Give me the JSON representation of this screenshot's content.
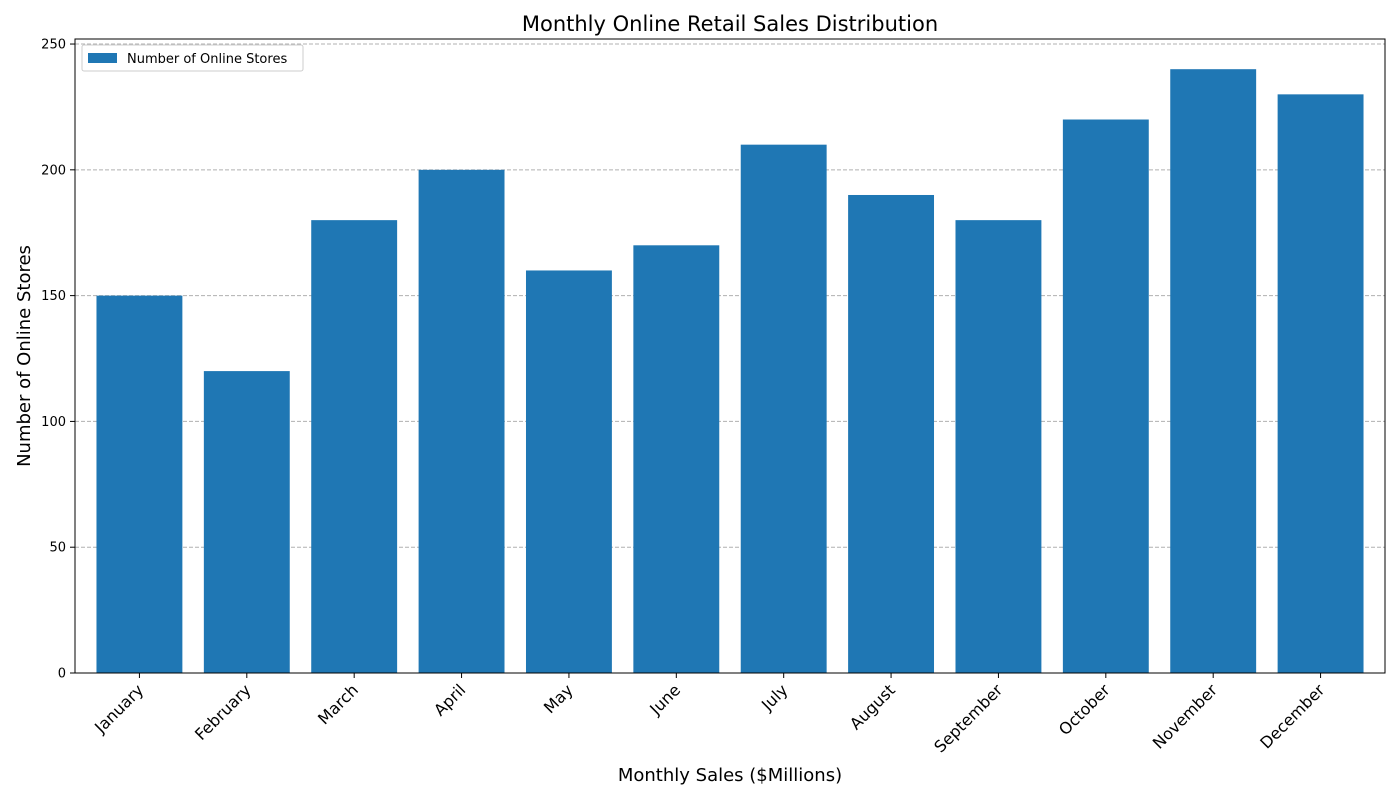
{
  "chart_data": {
    "type": "bar",
    "title": "Monthly Online Retail Sales Distribution",
    "xlabel": "Monthly Sales ($Millions)",
    "ylabel": "Number of Online Stores",
    "categories": [
      "January",
      "February",
      "March",
      "April",
      "May",
      "June",
      "July",
      "August",
      "September",
      "October",
      "November",
      "December"
    ],
    "series": [
      {
        "name": "Number of Online Stores",
        "values": [
          150,
          120,
          180,
          200,
          160,
          170,
          210,
          190,
          180,
          220,
          240,
          230
        ],
        "color": "#1f77b4"
      }
    ],
    "ylim": [
      0,
      252
    ],
    "yticks": [
      0,
      50,
      100,
      150,
      200,
      250
    ],
    "grid": "horizontal dashed",
    "legend_position": "top-left",
    "colors": {
      "bar": "#1f77b4",
      "grid": "#b0b0b0",
      "axis": "#000000"
    }
  }
}
